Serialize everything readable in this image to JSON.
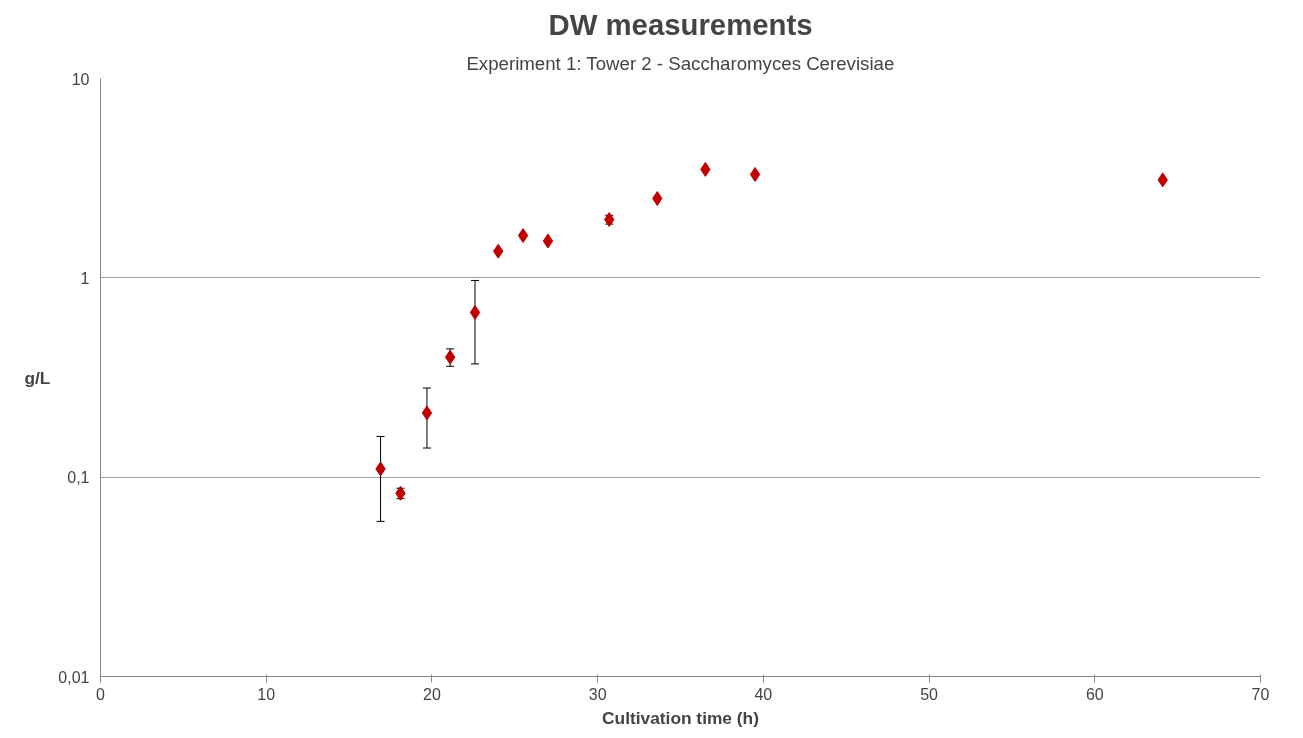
{
  "chart_data": {
    "type": "scatter",
    "title": "DW measurements",
    "subtitle": "Experiment 1: Tower 2 - Saccharomyces Cerevisiae",
    "xlabel": "Cultivation time (h)",
    "ylabel": "g/L",
    "x": [
      16.9,
      18.1,
      19.7,
      21.1,
      22.6,
      24.0,
      25.5,
      27.0,
      30.7,
      33.6,
      36.5,
      39.5,
      64.1
    ],
    "series": [
      {
        "color": "#c00000",
        "values": [
          0.11,
          0.083,
          0.21,
          0.4,
          0.67,
          1.36,
          1.63,
          1.53,
          1.96,
          2.5,
          3.5,
          3.3,
          3.1
        ],
        "errors": [
          0.05,
          0.005,
          0.07,
          0.04,
          0.3,
          null,
          null,
          null,
          0.1,
          null,
          null,
          null,
          null
        ]
      }
    ],
    "xlim": [
      0,
      70
    ],
    "xticks": [
      0,
      10,
      20,
      30,
      40,
      50,
      60,
      70
    ],
    "ylim": [
      0.01,
      10
    ],
    "yticks": [
      {
        "value": 0.01,
        "label": "0,01"
      },
      {
        "value": 0.1,
        "label": "0,1"
      },
      1,
      10
    ],
    "log": "y",
    "grid": "y",
    "marker": "diamond"
  }
}
